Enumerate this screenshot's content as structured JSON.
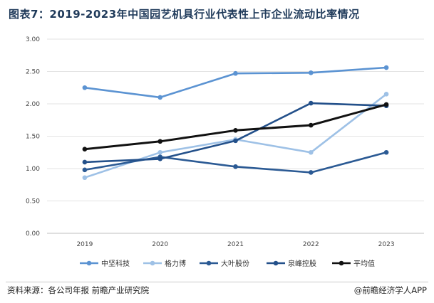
{
  "title": "图表7：2019-2023年中国园艺机具行业代表性上市企业流动比率情况",
  "footer": {
    "source": "资料来源：各公司年报 前瞻产业研究院",
    "brand": "@前瞻经济学人APP"
  },
  "chart_data": {
    "type": "line",
    "categories": [
      "2019",
      "2020",
      "2021",
      "2022",
      "2023"
    ],
    "ylim": [
      0,
      3
    ],
    "yticks": [
      "0.00",
      "0.50",
      "1.00",
      "1.50",
      "2.00",
      "2.50",
      "3.00"
    ],
    "grid": true,
    "legend_position": "bottom",
    "series": [
      {
        "name": "中坚科技",
        "color": "#5b93d2",
        "values": [
          2.25,
          2.1,
          2.47,
          2.48,
          2.56
        ]
      },
      {
        "name": "格力博",
        "color": "#9ec1e6",
        "values": [
          0.86,
          1.25,
          1.45,
          1.25,
          2.15
        ]
      },
      {
        "name": "大叶股份",
        "color": "#2b5a94",
        "values": [
          0.98,
          1.18,
          1.03,
          0.94,
          1.25
        ]
      },
      {
        "name": "泉峰控股",
        "color": "#23508a",
        "values": [
          1.1,
          1.15,
          1.43,
          2.01,
          1.97
        ]
      },
      {
        "name": "平均值",
        "color": "#111111",
        "values": [
          1.3,
          1.42,
          1.59,
          1.67,
          1.99
        ]
      }
    ]
  }
}
